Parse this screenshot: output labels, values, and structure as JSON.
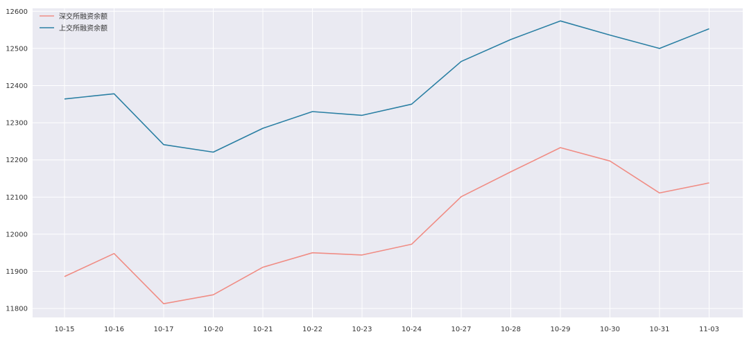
{
  "chart_data": {
    "type": "line",
    "title": "",
    "xlabel": "",
    "ylabel": "",
    "categories": [
      "10-15",
      "10-16",
      "10-17",
      "10-20",
      "10-21",
      "10-22",
      "10-23",
      "10-24",
      "10-27",
      "10-28",
      "10-29",
      "10-30",
      "10-31",
      "11-03"
    ],
    "series": [
      {
        "name": "深交所融资余额",
        "color": "#f08c84",
        "values": [
          11886,
          11948,
          11813,
          11837,
          11911,
          11950,
          11944,
          11973,
          12101,
          12168,
          12233,
          12197,
          12111,
          12138
        ]
      },
      {
        "name": "上交所融资余额",
        "color": "#2a7fa3",
        "values": [
          12364,
          12378,
          12241,
          12221,
          12285,
          12330,
          12320,
          12350,
          12465,
          12524,
          12574,
          12536,
          12500,
          12553
        ]
      }
    ],
    "ylim": [
      11776,
      12608
    ],
    "yticks": [
      11800,
      11900,
      12000,
      12100,
      12200,
      12300,
      12400,
      12500,
      12600
    ],
    "grid": true,
    "background_color": "#eaeaf2",
    "legend_position": "top-left"
  }
}
